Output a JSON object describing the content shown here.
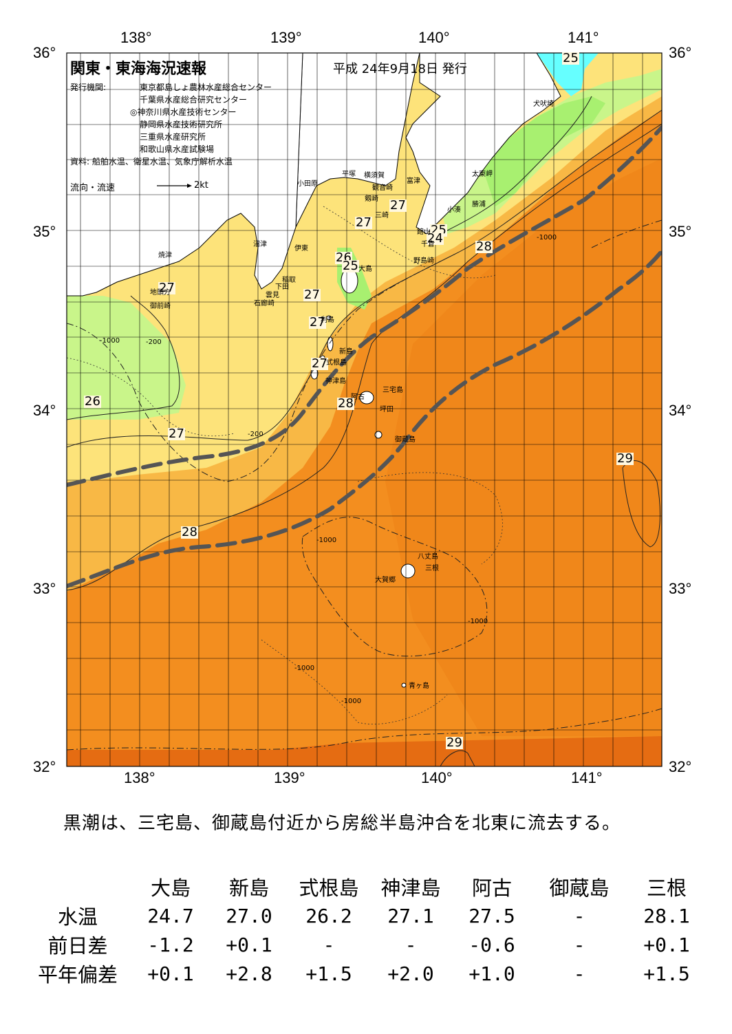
{
  "title": "関東・東海海況速報",
  "issue_date": "平成 24年9月18日 発行",
  "issuers_heading": "発行機関:",
  "issuers": [
    "東京都島しょ農林水産総合センター",
    "千葉県水産総合研究センター",
    "◎神奈川県水産技術センター",
    "静岡県水産技術研究所",
    "三重県水産研究所",
    "和歌山県水産試験場"
  ],
  "sources": "資料: 船舶水温、衛星水温、気象庁解析水温",
  "flow_legend": {
    "label": "流向・流速",
    "scale": "2kt"
  },
  "axes": {
    "longitude_labels": [
      "138°",
      "139°",
      "140°",
      "141°"
    ],
    "latitude_labels": [
      "36°",
      "35°",
      "34°",
      "33°",
      "32°"
    ]
  },
  "contour_labels": [
    {
      "text": "25",
      "name": "label-25-north"
    },
    {
      "text": "27",
      "name": "label-27-miura"
    },
    {
      "text": "27",
      "name": "label-27-sagami"
    },
    {
      "text": "25",
      "name": "label-25-boso"
    },
    {
      "text": "24",
      "name": "label-24-boso"
    },
    {
      "text": "28",
      "name": "label-28-boso"
    },
    {
      "text": "26",
      "name": "label-26-oshima"
    },
    {
      "text": "25",
      "name": "label-25-oshima"
    },
    {
      "text": "27",
      "name": "label-27-west"
    },
    {
      "text": "27",
      "name": "label-27-izu-east"
    },
    {
      "text": "27",
      "name": "label-27-toshima"
    },
    {
      "text": "27",
      "name": "label-27-shikine"
    },
    {
      "text": "28",
      "name": "label-28-miyake"
    },
    {
      "text": "26",
      "name": "label-26-west"
    },
    {
      "text": "27",
      "name": "label-27-southwest"
    },
    {
      "text": "29",
      "name": "label-29-east"
    },
    {
      "text": "28",
      "name": "label-28-south"
    },
    {
      "text": "29",
      "name": "label-29-bottom"
    }
  ],
  "place_names": {
    "inubosaki": "犬吠埼",
    "taitomisaki": "太東岬",
    "katsuura": "勝浦",
    "kominato": "小湊",
    "tateyama": "館山",
    "chikura": "千倉",
    "nojimazaki": "野島崎",
    "futtsu": "富津",
    "yokosuka": "横須賀",
    "kannonzaki": "観音崎",
    "tsurugizaki": "剱崎",
    "misaki": "三崎",
    "hiratsuka": "平塚",
    "odawara": "小田原",
    "ito": "伊東",
    "numazu": "沼津",
    "inatori": "稲取",
    "shimoda": "下田",
    "mikomoto": "雲見",
    "irozaki": "石廊崎",
    "yaizu": "焼津",
    "chikyu": "地頭方",
    "omaezaki": "御前崎",
    "oshima": "大島",
    "toshima": "利島",
    "niijima": "新島",
    "shikinejima": "式根島",
    "kozushima": "神津島",
    "miyakejima": "三宅島",
    "ako": "阿古",
    "tsubota": "坪田",
    "mikurajima": "御蔵島",
    "hachijojima": "八丈島",
    "mitsune": "三根",
    "okago": "大賀郷",
    "aogashima": "青ヶ島"
  },
  "depth_labels": [
    "-200",
    "-1000"
  ],
  "summary": "黒潮は、三宅島、御蔵島付近から房総半島沖合を北東に流去する。",
  "stats_table": {
    "headers": [
      "大島",
      "新島",
      "式根島",
      "神津島",
      "阿古",
      "御蔵島",
      "三根"
    ],
    "rows": [
      {
        "label": "水温",
        "values": [
          "24.7",
          "27.0",
          "26.2",
          "27.1",
          "27.5",
          "-",
          "28.1"
        ]
      },
      {
        "label": "前日差",
        "values": [
          "-1.2",
          "+0.1",
          "-",
          "-",
          "-0.6",
          "-",
          "+0.1"
        ]
      },
      {
        "label": "平年偏差",
        "values": [
          "+0.1",
          "+2.8",
          "+1.5",
          "+2.0",
          "+1.0",
          "-",
          "+1.5"
        ]
      }
    ]
  },
  "colors": {
    "t_le24": "#66ffff",
    "t_24_25": "#a8f070",
    "t_25_26": "#c9f58a",
    "t_26_27": "#fde37a",
    "t_27_28": "#f8b845",
    "t_28_29": "#f38e1f",
    "t_ge29": "#e56c12",
    "kuroshio_axis": "#555555",
    "land": "#ffffff"
  }
}
